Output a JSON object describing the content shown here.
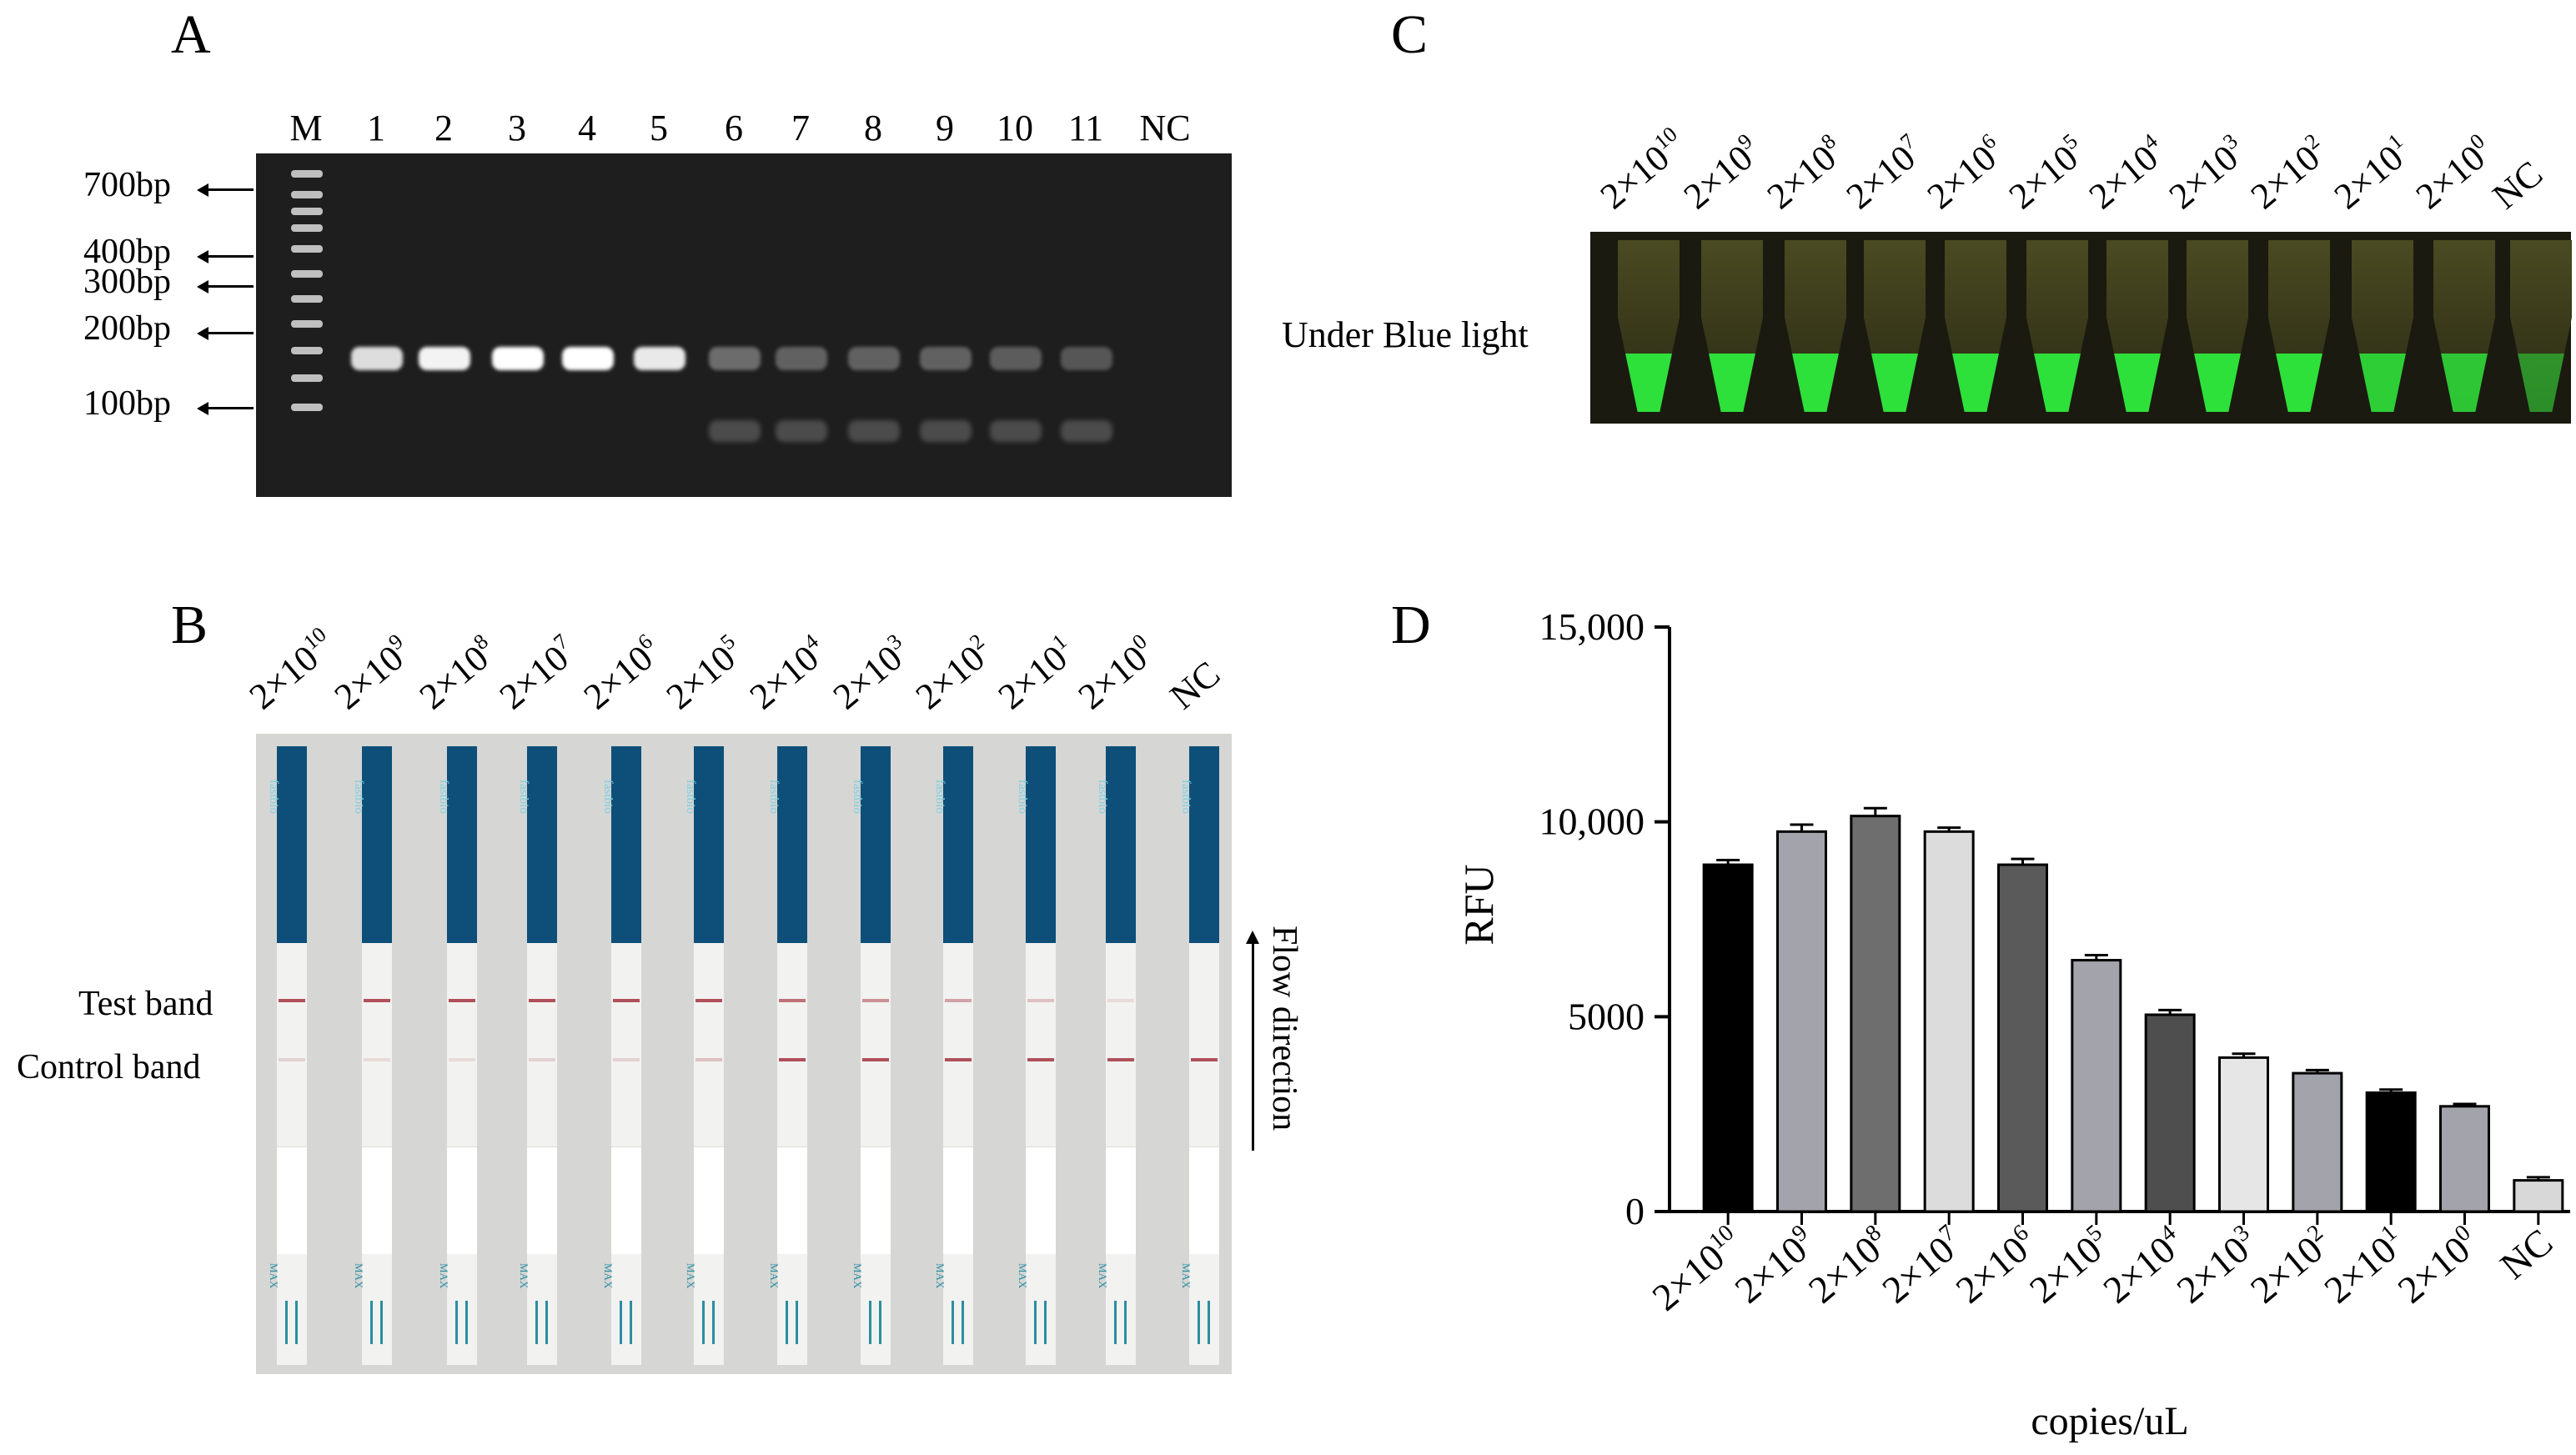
{
  "panel_a": {
    "letter": "A",
    "lanes": [
      "M",
      "1",
      "2",
      "3",
      "4",
      "5",
      "6",
      "7",
      "8",
      "9",
      "10",
      "11",
      "NC"
    ],
    "markers": [
      "700bp",
      "400bp",
      "300bp",
      "200bp",
      "100bp"
    ]
  },
  "panel_b": {
    "letter": "B",
    "test_band_label": "Test band",
    "control_band_label": "Control band",
    "flow_label": "Flow direction",
    "strip_brand": "fastbio",
    "strip_max": "MAX"
  },
  "panel_c": {
    "letter": "C",
    "light_label": "Under Blue light"
  },
  "panel_d": {
    "letter": "D"
  },
  "concentration_labels": [
    {
      "base": "2×10",
      "exp": "10"
    },
    {
      "base": "2×10",
      "exp": "9"
    },
    {
      "base": "2×10",
      "exp": "8"
    },
    {
      "base": "2×10",
      "exp": "7"
    },
    {
      "base": "2×10",
      "exp": "6"
    },
    {
      "base": "2×10",
      "exp": "5"
    },
    {
      "base": "2×10",
      "exp": "4"
    },
    {
      "base": "2×10",
      "exp": "3"
    },
    {
      "base": "2×10",
      "exp": "2"
    },
    {
      "base": "2×10",
      "exp": "1"
    },
    {
      "base": "2×10",
      "exp": "0"
    },
    {
      "base": "NC",
      "exp": ""
    }
  ],
  "chart_data": {
    "type": "bar",
    "categories": [
      "2×10^10",
      "2×10^9",
      "2×10^8",
      "2×10^7",
      "2×10^6",
      "2×10^5",
      "2×10^4",
      "2×10^3",
      "2×10^2",
      "2×10^1",
      "2×10^0",
      "NC"
    ],
    "values": [
      8900,
      9750,
      10150,
      9750,
      8900,
      6450,
      5050,
      3950,
      3550,
      3050,
      2700,
      800
    ],
    "errors": [
      120,
      180,
      200,
      100,
      150,
      130,
      120,
      100,
      80,
      80,
      60,
      80
    ],
    "bar_colors": [
      "#000000",
      "#a3a3ab",
      "#6e6e6e",
      "#dcdcdc",
      "#5a5a5a",
      "#a3a3ab",
      "#4e4e4e",
      "#e6e6e6",
      "#a3a3ab",
      "#000000",
      "#a3a3ab",
      "#d8d8d8"
    ],
    "yticks": [
      "0",
      "5000",
      "10,000",
      "15,000"
    ],
    "ytick_values": [
      0,
      5000,
      10000,
      15000
    ],
    "ylim": [
      0,
      15000
    ],
    "ylabel": "RFU",
    "xlabel": "copies/uL"
  }
}
